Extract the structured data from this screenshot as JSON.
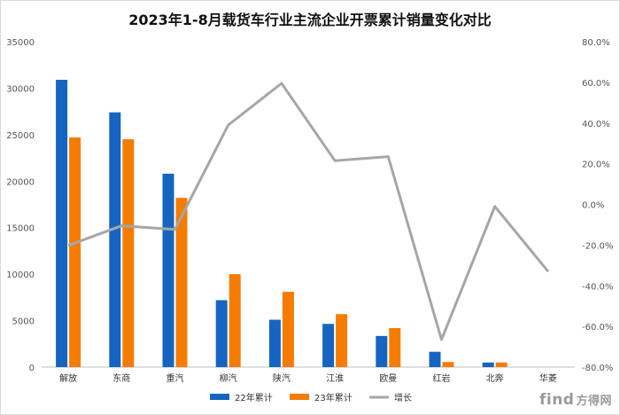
{
  "chart_data": {
    "type": "bar",
    "title": "2023年1-8月载货车行业主流企业开票累计销量变化对比",
    "categories": [
      "解放",
      "东商",
      "重汽",
      "柳汽",
      "陕汽",
      "江淮",
      "欧曼",
      "红岩",
      "北奔",
      "华菱"
    ],
    "series": [
      {
        "name": "22年累计",
        "type": "bar",
        "axis": "left",
        "color": "#1565c0",
        "values": [
          30900,
          27400,
          20800,
          7200,
          5100,
          4650,
          3350,
          1650,
          500,
          0
        ]
      },
      {
        "name": "23年累计",
        "type": "bar",
        "axis": "left",
        "color": "#f57c00",
        "values": [
          24700,
          24500,
          18200,
          10000,
          8100,
          5700,
          4200,
          550,
          500,
          0
        ]
      },
      {
        "name": "增长",
        "type": "line",
        "axis": "right",
        "color": "#a6a6a6",
        "values": [
          -20.2,
          -10.5,
          -12.3,
          39.0,
          59.5,
          21.5,
          23.5,
          -66.5,
          -1.0,
          -33.0
        ]
      }
    ],
    "left_axis": {
      "min": 0,
      "max": 35000,
      "ticks": [
        "0",
        "5000",
        "10000",
        "15000",
        "20000",
        "25000",
        "30000",
        "35000"
      ]
    },
    "right_axis": {
      "min": -80,
      "max": 80,
      "ticks": [
        "-80.0%",
        "-60.0%",
        "-40.0%",
        "-20.0%",
        "0.0%",
        "20.0%",
        "40.0%",
        "60.0%",
        "80.0%"
      ]
    },
    "legend_position": "bottom"
  },
  "watermark": {
    "text": "find",
    "cn": "方得网"
  }
}
